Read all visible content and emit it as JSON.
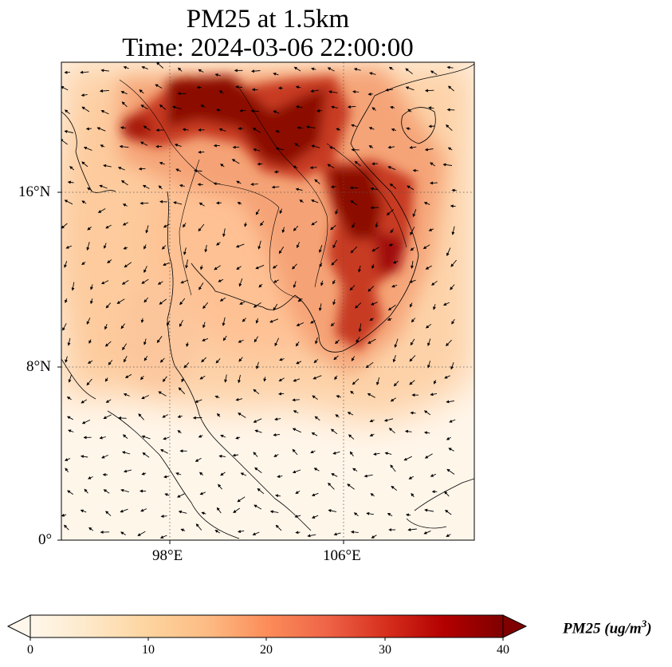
{
  "title": {
    "line1": "PM25 at 1.5km",
    "line2": "Time: 2024-03-06 22:00:00"
  },
  "map": {
    "variable": "PM25",
    "level": "1.5km",
    "time": "2024-03-06 22:00:00",
    "lon_range": [
      91.5,
      110.5
    ],
    "lat_range": [
      0,
      22
    ],
    "lat_ticks": [
      {
        "value": 16,
        "label": "16°N"
      },
      {
        "value": 8,
        "label": "8°N"
      },
      {
        "value": 0,
        "label": "0°"
      }
    ],
    "lon_ticks": [
      {
        "value": 98,
        "label": "98°E"
      },
      {
        "value": 106,
        "label": "106°E"
      }
    ],
    "gridlines": "dotted",
    "wind_vectors": true
  },
  "colorbar": {
    "colormap": "OrRd",
    "colors": [
      "#fff7ec",
      "#fee8c8",
      "#fdd49e",
      "#fdbb84",
      "#fc8d59",
      "#ef6548",
      "#d7301f",
      "#b30000",
      "#7f0000"
    ],
    "min": 0,
    "max": 40,
    "ticks": [
      "0",
      "10",
      "20",
      "30",
      "40"
    ],
    "extend": "both",
    "label_main": "PM25 (ug/m",
    "label_sup": "3",
    "label_close": ")"
  }
}
